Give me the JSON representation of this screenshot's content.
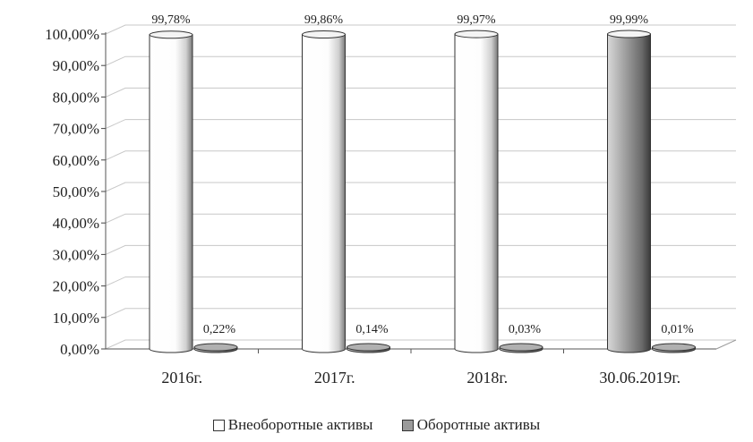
{
  "chart_data": {
    "type": "bar",
    "categories": [
      "2016г.",
      "2017г.",
      "2018г.",
      "30.06.2019г."
    ],
    "series": [
      {
        "name": "Внеоборотные активы",
        "values": [
          99.78,
          99.86,
          99.97,
          99.99
        ],
        "labels": [
          "99,78%",
          "99,86%",
          "99,97%",
          "99,99%"
        ]
      },
      {
        "name": "Оборотные активы",
        "values": [
          0.22,
          0.14,
          0.03,
          0.01
        ],
        "labels": [
          "0,22%",
          "0,14%",
          "0,03%",
          "0,01%"
        ]
      }
    ],
    "yticks": [
      "0,00%",
      "10,00%",
      "20,00%",
      "30,00%",
      "40,00%",
      "50,00%",
      "60,00%",
      "70,00%",
      "80,00%",
      "90,00%",
      "100,00%"
    ],
    "ylim": [
      0,
      100
    ],
    "grid": true,
    "legend_position": "bottom",
    "colors": {
      "series1": "#ffffff",
      "series2": "#9a9a9a"
    },
    "style": "3d-cylinder"
  }
}
